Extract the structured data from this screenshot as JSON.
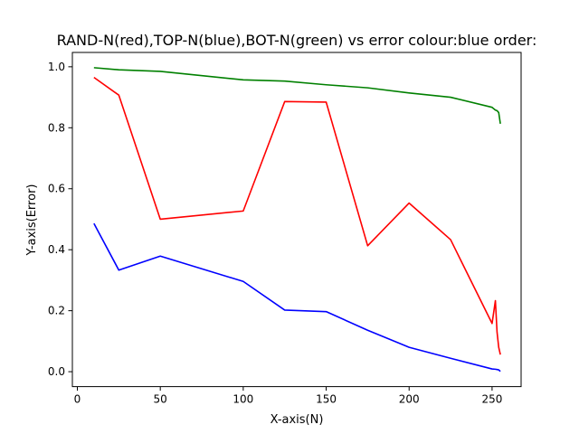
{
  "chart_data": {
    "type": "line",
    "title": "RAND-N(red),TOP-N(blue),BOT-N(green) vs error colour:blue order:",
    "xlabel": "X-axis(N)",
    "ylabel": "Y-axis(Error)",
    "xlim": [
      -3,
      267.5
    ],
    "ylim": [
      -0.049,
      1.047
    ],
    "xticks": [
      0,
      50,
      100,
      150,
      200,
      250
    ],
    "xtick_labels": [
      "0",
      "50",
      "100",
      "150",
      "200",
      "250"
    ],
    "yticks": [
      0.0,
      0.2,
      0.4,
      0.6,
      0.8,
      1.0
    ],
    "ytick_labels": [
      "0.0",
      "0.2",
      "0.4",
      "0.6",
      "0.8",
      "1.0"
    ],
    "grid": false,
    "legend": "none",
    "series": [
      {
        "color": "#ff0000",
        "x": [
          10,
          25,
          50,
          100,
          125,
          150,
          175,
          200,
          225,
          250,
          252,
          253,
          254,
          255
        ],
        "y": [
          0.965,
          0.907,
          0.5,
          0.527,
          0.886,
          0.884,
          0.413,
          0.553,
          0.433,
          0.158,
          0.233,
          0.13,
          0.08,
          0.056
        ]
      },
      {
        "color": "#0000ff",
        "x": [
          10,
          25,
          50,
          100,
          125,
          150,
          175,
          200,
          225,
          250,
          252,
          253,
          254,
          255
        ],
        "y": [
          0.486,
          0.333,
          0.379,
          0.296,
          0.202,
          0.197,
          0.136,
          0.08,
          0.044,
          0.009,
          0.008,
          0.007,
          0.006,
          0.001
        ]
      },
      {
        "color": "#008000",
        "x": [
          10,
          25,
          50,
          100,
          125,
          150,
          175,
          200,
          225,
          250,
          252,
          253,
          254,
          255
        ],
        "y": [
          0.997,
          0.99,
          0.985,
          0.957,
          0.953,
          0.941,
          0.931,
          0.914,
          0.9,
          0.867,
          0.858,
          0.856,
          0.85,
          0.813
        ]
      }
    ]
  }
}
